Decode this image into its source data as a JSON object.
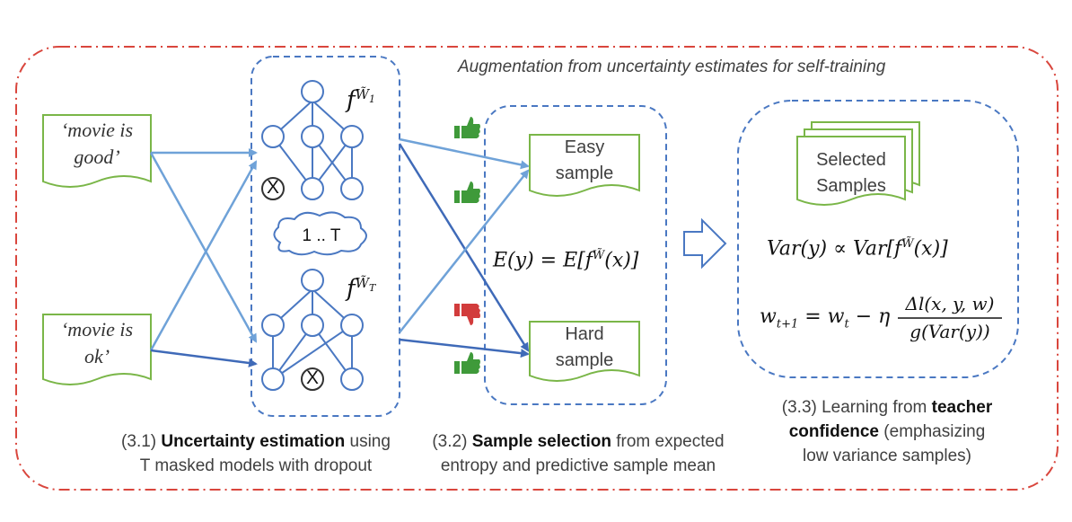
{
  "title": "Augmentation from uncertainty estimates for self-training",
  "inputs": [
    {
      "line1": "‘movie is",
      "line2": "good’"
    },
    {
      "line1": "‘movie is",
      "line2": "ok’"
    }
  ],
  "models": {
    "top_label": "f^{W̃₁}",
    "bottom_label": "f^{W̃_T}",
    "loop_label": "1 .. T",
    "dropout_mark": "X"
  },
  "samples": {
    "easy": {
      "line1": "Easy",
      "line2": "sample"
    },
    "hard": {
      "line1": "Hard",
      "line2": "sample"
    },
    "expectation_formula": "E(y) = E[f^W̃(x)]"
  },
  "learning": {
    "selected": {
      "line1": "Selected",
      "line2": "Samples"
    },
    "variance_formula": "Var(y) ∝ Var[f^W̃(x)]",
    "update_lhs": "w_{t+1} = w_t − η",
    "update_num": "Δl(x, y, w)",
    "update_den": "g(Var(y))"
  },
  "captions": {
    "c1": {
      "prefix": "(3.1) ",
      "bold": "Uncertainty estimation",
      "suffix": " using",
      "line2": "T masked models with dropout"
    },
    "c2": {
      "prefix": "(3.2) ",
      "bold": "Sample selection",
      "suffix": " from expected",
      "line2": "entropy and predictive sample mean"
    },
    "c3": {
      "prefix": "(3.3) Learning from ",
      "bold1": "teacher",
      "bold2": "confidence",
      "suffix2": " (emphasizing",
      "line3": "low variance samples)"
    }
  },
  "colors": {
    "outer_border": "#d9463d",
    "dashed_blue": "#4a78c2",
    "arrow_light": "#6fa2d8",
    "arrow_dark": "#3f6ab8",
    "doc_border": "#7ab648",
    "thumb_up": "#3f9a3a",
    "thumb_down": "#d23c3c"
  },
  "icons": [
    "thumbs-up-icon",
    "thumbs-down-icon",
    "cloud-icon",
    "block-arrow-icon",
    "dropout-x-icon"
  ]
}
